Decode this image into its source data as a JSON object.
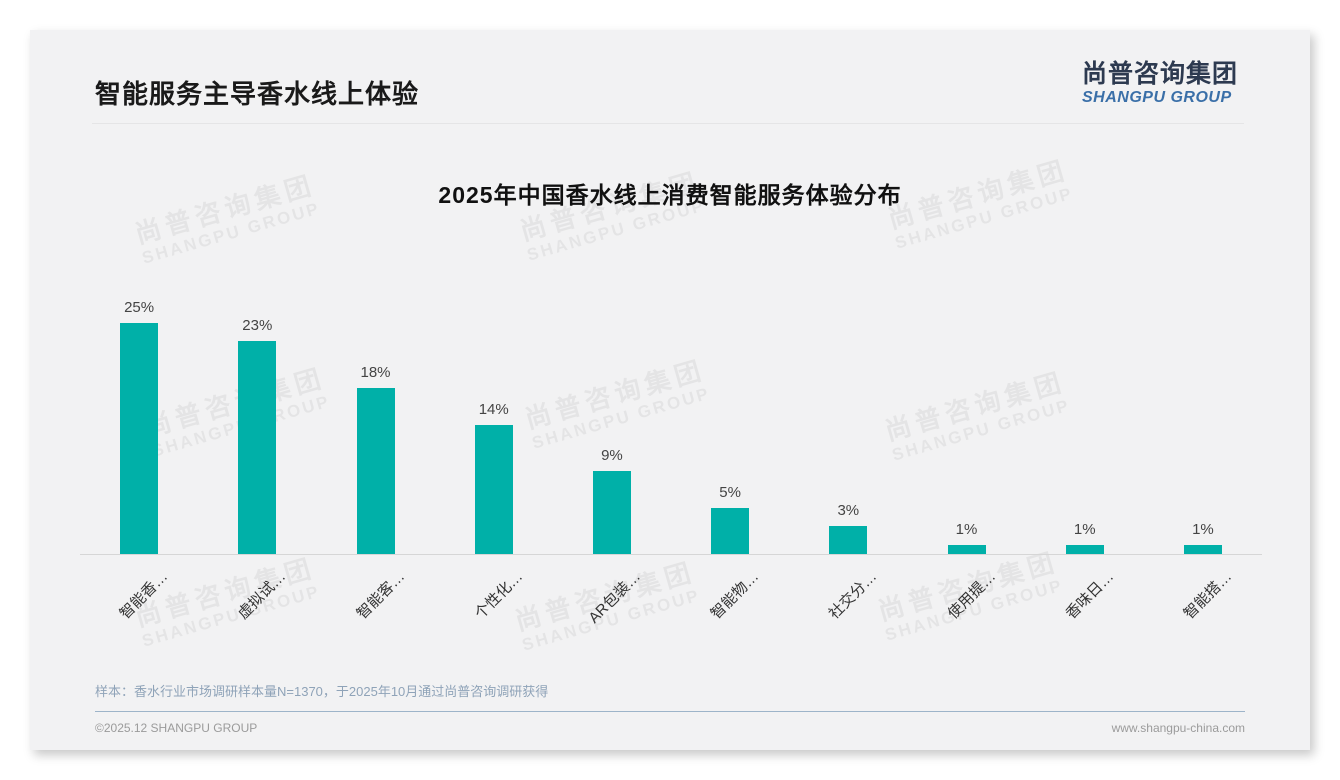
{
  "page": {
    "title": "智能服务主导香水线上体验",
    "logo": {
      "cn": "尚普咨询集团",
      "en": "SHANGPU GROUP"
    },
    "watermark": {
      "cn": "尚普咨询集团",
      "en": "SHANGPU GROUP"
    },
    "footnote": "样本：香水行业市场调研样本量N=1370，于2025年10月通过尚普咨询调研获得",
    "footer": {
      "copyright": "©2025.12 SHANGPU GROUP",
      "website": "www.shangpu-china.com"
    }
  },
  "chart_data": {
    "type": "bar",
    "title": "2025年中国香水线上消费智能服务体验分布",
    "categories": [
      "智能香…",
      "虚拟试…",
      "智能客…",
      "个性化…",
      "AR包装…",
      "智能物…",
      "社交分…",
      "使用提…",
      "香味日…",
      "智能搭…"
    ],
    "values": [
      25,
      23,
      18,
      14,
      9,
      5,
      3,
      1,
      1,
      1
    ],
    "data_labels": [
      "25%",
      "23%",
      "18%",
      "14%",
      "9%",
      "5%",
      "3%",
      "1%",
      "1%",
      "1%"
    ],
    "unit": "%",
    "bar_color": "#00b0a8",
    "xlabel": "",
    "ylabel": "",
    "ylim": [
      0,
      27
    ],
    "grid": false,
    "legend": null,
    "x_tick_rotation": 45
  }
}
